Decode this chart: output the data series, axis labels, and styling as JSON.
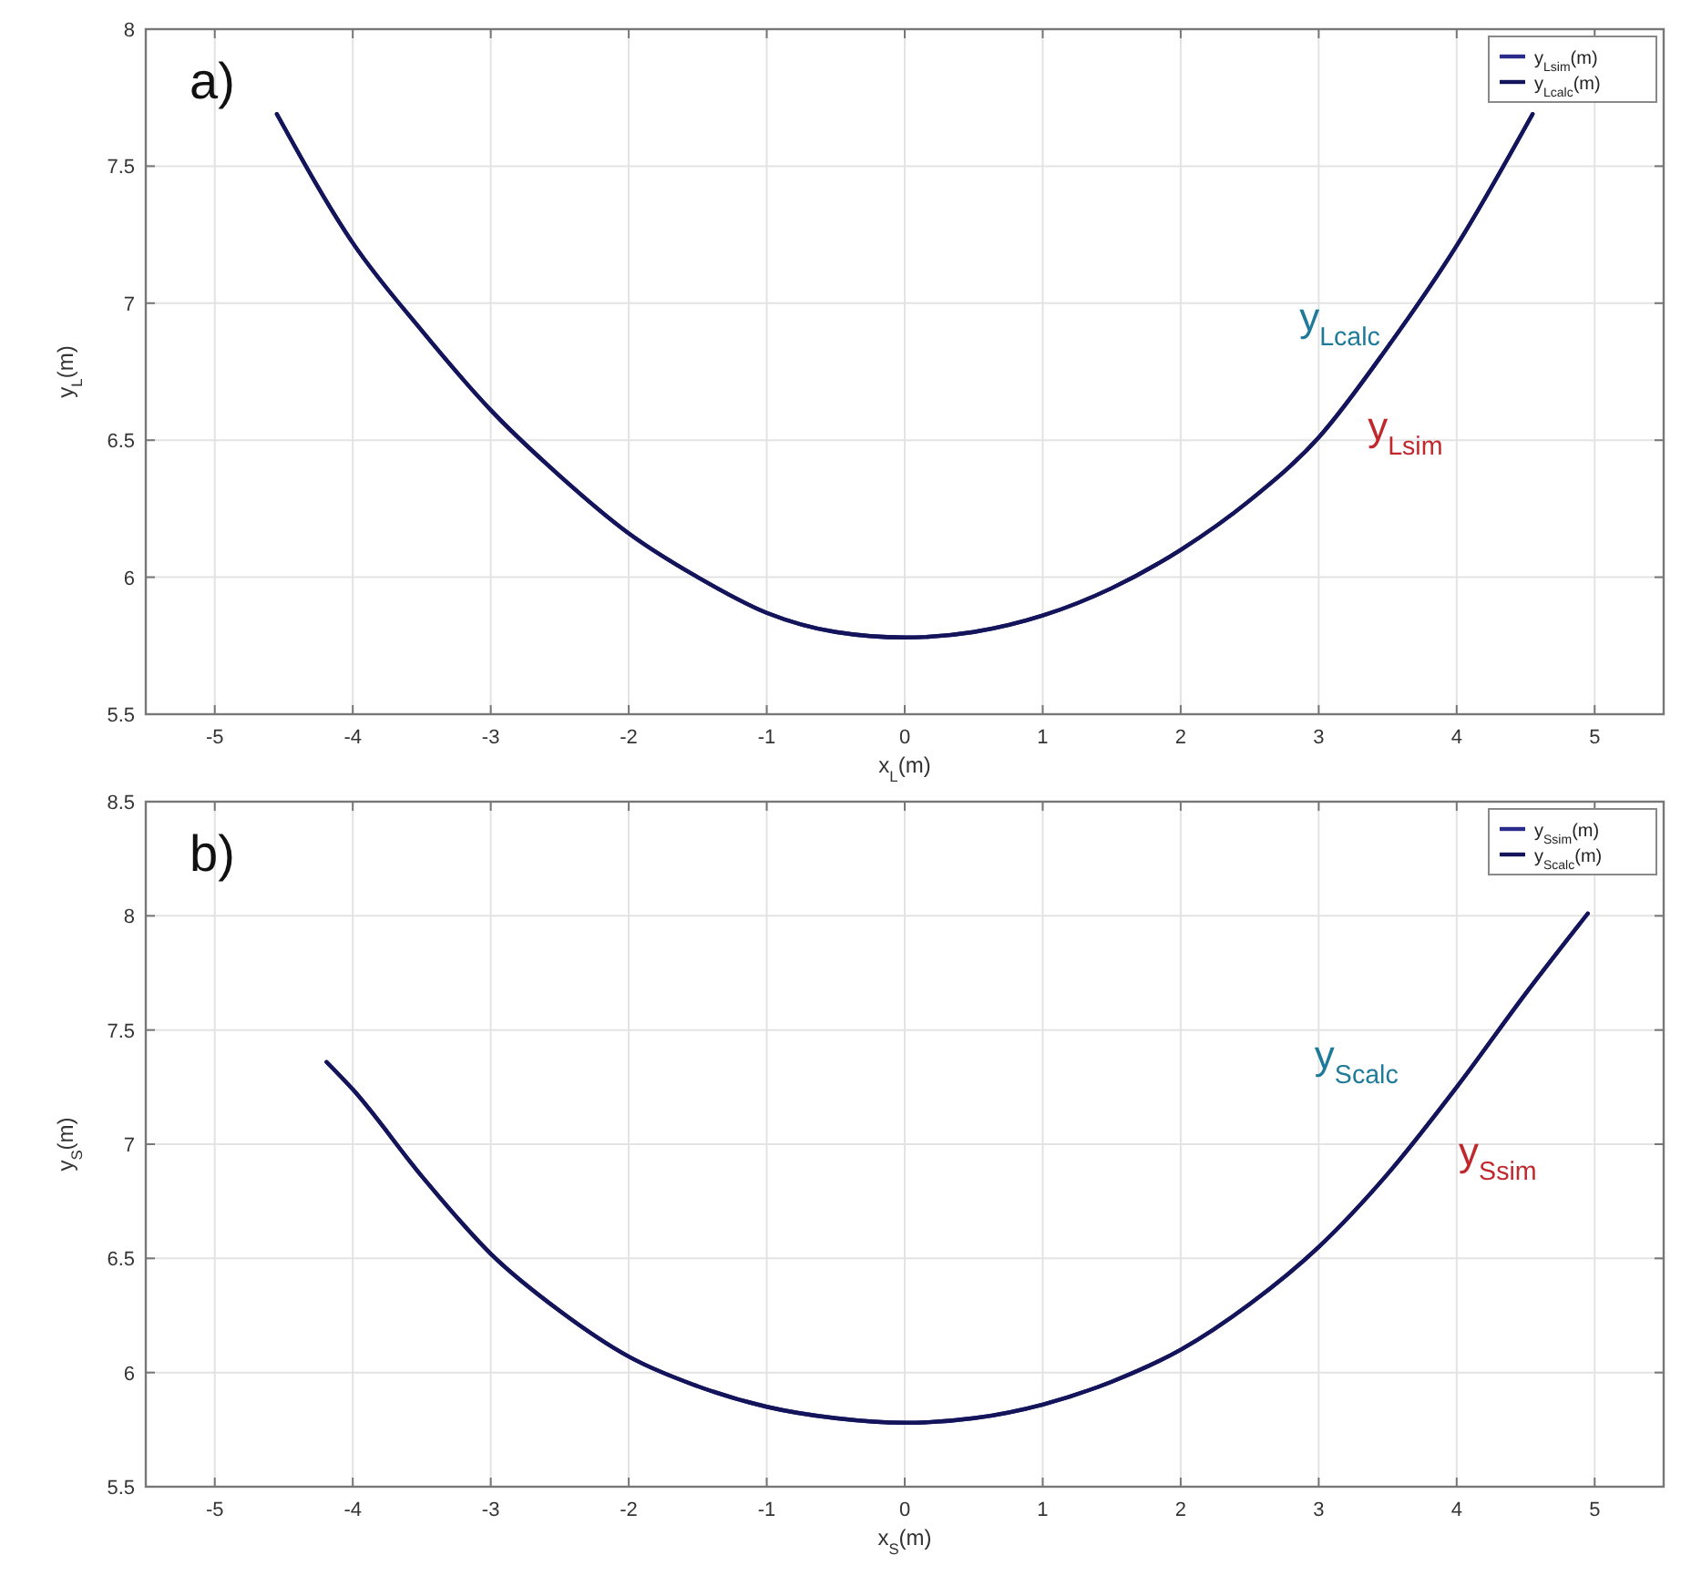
{
  "chart_data": [
    {
      "type": "line",
      "title": "a)",
      "xlabel": "x$_{L}$(m)",
      "ylabel": "y$_{L}$(m)",
      "xlim": [
        -5.5,
        5.5
      ],
      "xticks": [
        -5,
        -4,
        -3,
        -2,
        -1,
        0,
        1,
        2,
        3,
        4,
        5
      ],
      "ylim": [
        5.5,
        8
      ],
      "yticks": [
        5.5,
        6,
        6.5,
        7,
        7.5,
        8
      ],
      "grid": true,
      "legend": "top right",
      "line_style": "solid",
      "x": [
        -4.55,
        -4,
        -3.5,
        -3,
        -2.5,
        -2,
        -1.5,
        -1,
        -0.5,
        0,
        0.5,
        1,
        1.5,
        2,
        2.5,
        3,
        3.5,
        4,
        4.55
      ],
      "series": [
        {
          "name": "y$_{Lsim}$(m)",
          "color": "#2b2b8c",
          "values": [
            7.69,
            7.22,
            6.9,
            6.61,
            6.37,
            6.16,
            6.0,
            5.87,
            5.8,
            5.78,
            5.8,
            5.86,
            5.96,
            6.1,
            6.28,
            6.51,
            6.84,
            7.21,
            7.69
          ]
        },
        {
          "name": "y$_{Lcalc}$(m)",
          "color": "#14145a",
          "values": [
            7.69,
            7.22,
            6.9,
            6.61,
            6.37,
            6.16,
            6.0,
            5.87,
            5.8,
            5.78,
            5.8,
            5.86,
            5.96,
            6.1,
            6.28,
            6.51,
            6.84,
            7.21,
            7.69
          ]
        }
      ],
      "annotations": [
        "y$_{Lcalc}$",
        "y$_{Lsim}$"
      ]
    },
    {
      "type": "line",
      "title": "b)",
      "xlabel": "x$_{S}$(m)",
      "ylabel": "y$_{S}$(m)",
      "xlim": [
        -5.5,
        5.5
      ],
      "xticks": [
        -5,
        -4,
        -3,
        -2,
        -1,
        0,
        1,
        2,
        3,
        4,
        5
      ],
      "ylim": [
        5.5,
        8.5
      ],
      "yticks": [
        5.5,
        6,
        6.5,
        7,
        7.5,
        8,
        8.5
      ],
      "grid": true,
      "legend": "top right",
      "line_style": "solid",
      "x": [
        -4.19,
        -4,
        -3.5,
        -3,
        -2.5,
        -2,
        -1.5,
        -1,
        -0.5,
        0,
        0.5,
        1,
        1.5,
        2,
        2.5,
        3,
        3.5,
        4,
        4.5,
        4.95
      ],
      "series": [
        {
          "name": "y$_{Ssim}$(m)",
          "color": "#2b2b8c",
          "values": [
            7.36,
            7.24,
            6.86,
            6.52,
            6.27,
            6.07,
            5.94,
            5.85,
            5.8,
            5.78,
            5.8,
            5.86,
            5.96,
            6.1,
            6.3,
            6.55,
            6.87,
            7.25,
            7.66,
            8.01
          ]
        },
        {
          "name": "y$_{Scalc}$(m)",
          "color": "#14145a",
          "values": [
            7.36,
            7.24,
            6.86,
            6.52,
            6.27,
            6.07,
            5.94,
            5.85,
            5.8,
            5.78,
            5.8,
            5.86,
            5.96,
            6.1,
            6.3,
            6.55,
            6.87,
            7.25,
            7.66,
            8.01
          ]
        }
      ],
      "annotations": [
        "y$_{Scalc}$",
        "y$_{Ssim}$"
      ]
    }
  ]
}
